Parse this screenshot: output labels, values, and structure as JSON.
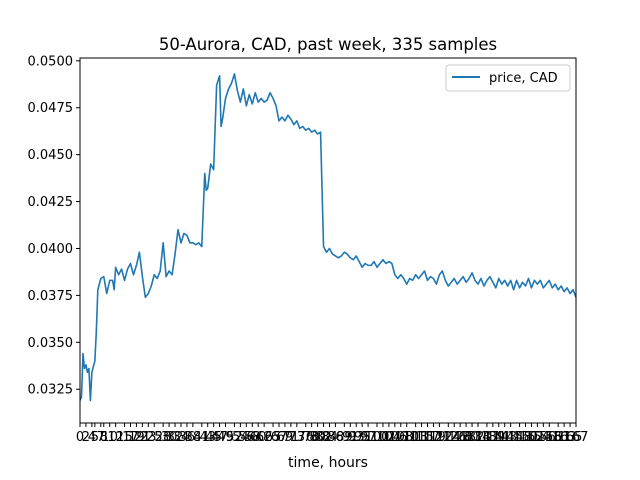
{
  "chart_data": {
    "type": "line",
    "title": "50-Aurora, CAD, past week, 335 samples",
    "xlabel": "time, hours",
    "ylabel": "",
    "xlim": [
      0,
      167
    ],
    "ylim": [
      0.0307,
      0.05015
    ],
    "y_ticks": [
      "0.0325",
      "0.0350",
      "0.0375",
      "0.0400",
      "0.0425",
      "0.0450",
      "0.0475",
      "0.0500"
    ],
    "y_tick_values": [
      0.0325,
      0.035,
      0.0375,
      0.04,
      0.0425,
      0.045,
      0.0475,
      0.05
    ],
    "x_ticks_note": "dense overlapping hour tick labels",
    "x_tick_labels": [
      "0",
      "2",
      "4",
      "5",
      "7",
      "8",
      "10",
      "12",
      "15",
      "17",
      "19",
      "21",
      "23",
      "25",
      "28",
      "30",
      "32",
      "34",
      "36",
      "38",
      "41",
      "43",
      "45",
      "47",
      "49",
      "52",
      "54",
      "56",
      "58",
      "60",
      "62",
      "65",
      "67",
      "69",
      "71",
      "73",
      "76",
      "78",
      "80",
      "82",
      "84",
      "86",
      "89",
      "91",
      "93",
      "95",
      "97",
      "100",
      "102",
      "104",
      "106",
      "108",
      "110",
      "113",
      "115",
      "117",
      "119",
      "121",
      "124",
      "126",
      "128",
      "130",
      "132",
      "134",
      "137",
      "139",
      "141",
      "143",
      "145",
      "148",
      "150",
      "152",
      "154",
      "156",
      "158",
      "161",
      "163",
      "165",
      "167"
    ],
    "legend": {
      "position": "top-right",
      "entries": [
        "price, CAD"
      ]
    },
    "grid": false,
    "series": [
      {
        "name": "price, CAD",
        "color": "#1f77b4",
        "points": [
          [
            0,
            0.0319
          ],
          [
            0.5,
            0.0321
          ],
          [
            1,
            0.0344
          ],
          [
            1.5,
            0.0336
          ],
          [
            2,
            0.0338
          ],
          [
            2.5,
            0.0334
          ],
          [
            3,
            0.0336
          ],
          [
            3.5,
            0.0319
          ],
          [
            4,
            0.0334
          ],
          [
            5,
            0.034
          ],
          [
            5.5,
            0.0356
          ],
          [
            6,
            0.0378
          ],
          [
            7,
            0.0384
          ],
          [
            8,
            0.0385
          ],
          [
            9,
            0.0376
          ],
          [
            10,
            0.0383
          ],
          [
            11,
            0.0383
          ],
          [
            11.5,
            0.0378
          ],
          [
            12,
            0.039
          ],
          [
            13,
            0.0386
          ],
          [
            14,
            0.0389
          ],
          [
            15,
            0.0383
          ],
          [
            16,
            0.0389
          ],
          [
            17,
            0.0392
          ],
          [
            18,
            0.0386
          ],
          [
            19,
            0.0391
          ],
          [
            20,
            0.0398
          ],
          [
            21,
            0.0385
          ],
          [
            22,
            0.0374
          ],
          [
            23,
            0.0376
          ],
          [
            24,
            0.038
          ],
          [
            25,
            0.0386
          ],
          [
            26,
            0.0384
          ],
          [
            27,
            0.0388
          ],
          [
            28,
            0.0403
          ],
          [
            29,
            0.0385
          ],
          [
            30,
            0.0388
          ],
          [
            31,
            0.0386
          ],
          [
            32,
            0.0397
          ],
          [
            33,
            0.041
          ],
          [
            34,
            0.0403
          ],
          [
            35,
            0.0408
          ],
          [
            36,
            0.0407
          ],
          [
            37,
            0.0403
          ],
          [
            38,
            0.0403
          ],
          [
            39,
            0.0402
          ],
          [
            40,
            0.0403
          ],
          [
            41,
            0.0401
          ],
          [
            42,
            0.044
          ],
          [
            42.5,
            0.0431
          ],
          [
            43,
            0.0432
          ],
          [
            44,
            0.0445
          ],
          [
            45,
            0.0442
          ],
          [
            46,
            0.0487
          ],
          [
            47,
            0.0492
          ],
          [
            47.5,
            0.0465
          ],
          [
            48,
            0.0469
          ],
          [
            49,
            0.048
          ],
          [
            50,
            0.0485
          ],
          [
            51,
            0.0488
          ],
          [
            52,
            0.0493
          ],
          [
            53,
            0.0484
          ],
          [
            54,
            0.0478
          ],
          [
            55,
            0.0485
          ],
          [
            56,
            0.0476
          ],
          [
            57,
            0.0482
          ],
          [
            58,
            0.0477
          ],
          [
            59,
            0.0483
          ],
          [
            60,
            0.0478
          ],
          [
            61,
            0.048
          ],
          [
            62,
            0.0478
          ],
          [
            63,
            0.0479
          ],
          [
            64,
            0.0483
          ],
          [
            65,
            0.048
          ],
          [
            66,
            0.0476
          ],
          [
            67,
            0.0468
          ],
          [
            68,
            0.047
          ],
          [
            69,
            0.0468
          ],
          [
            70,
            0.0471
          ],
          [
            71,
            0.0469
          ],
          [
            72,
            0.0466
          ],
          [
            73,
            0.0468
          ],
          [
            74,
            0.0464
          ],
          [
            75,
            0.0465
          ],
          [
            76,
            0.0463
          ],
          [
            77,
            0.0464
          ],
          [
            78,
            0.0462
          ],
          [
            79,
            0.0463
          ],
          [
            80,
            0.0461
          ],
          [
            81,
            0.0462
          ],
          [
            82,
            0.0401
          ],
          [
            83,
            0.0398
          ],
          [
            84,
            0.04
          ],
          [
            85,
            0.0397
          ],
          [
            86,
            0.0396
          ],
          [
            87,
            0.0395
          ],
          [
            88,
            0.0396
          ],
          [
            89,
            0.0398
          ],
          [
            90,
            0.0397
          ],
          [
            91,
            0.0395
          ],
          [
            92,
            0.0394
          ],
          [
            93,
            0.0396
          ],
          [
            94,
            0.0393
          ],
          [
            95,
            0.039
          ],
          [
            96,
            0.0392
          ],
          [
            97,
            0.0391
          ],
          [
            98,
            0.0391
          ],
          [
            99,
            0.0393
          ],
          [
            100,
            0.039
          ],
          [
            101,
            0.0392
          ],
          [
            102,
            0.0394
          ],
          [
            103,
            0.0392
          ],
          [
            104,
            0.0393
          ],
          [
            105,
            0.0392
          ],
          [
            106,
            0.0386
          ],
          [
            107,
            0.0384
          ],
          [
            108,
            0.0386
          ],
          [
            109,
            0.0384
          ],
          [
            110,
            0.0381
          ],
          [
            111,
            0.0384
          ],
          [
            112,
            0.0383
          ],
          [
            113,
            0.0386
          ],
          [
            114,
            0.0384
          ],
          [
            115,
            0.0386
          ],
          [
            116,
            0.0388
          ],
          [
            117,
            0.0383
          ],
          [
            118,
            0.0385
          ],
          [
            119,
            0.0384
          ],
          [
            120,
            0.0381
          ],
          [
            121,
            0.0386
          ],
          [
            122,
            0.0388
          ],
          [
            123,
            0.0383
          ],
          [
            124,
            0.038
          ],
          [
            125,
            0.0382
          ],
          [
            126,
            0.0384
          ],
          [
            127,
            0.0381
          ],
          [
            128,
            0.0383
          ],
          [
            129,
            0.0385
          ],
          [
            130,
            0.0382
          ],
          [
            131,
            0.0384
          ],
          [
            132,
            0.0387
          ],
          [
            133,
            0.0383
          ],
          [
            134,
            0.0381
          ],
          [
            135,
            0.0384
          ],
          [
            136,
            0.038
          ],
          [
            137,
            0.0383
          ],
          [
            138,
            0.0385
          ],
          [
            139,
            0.0382
          ],
          [
            140,
            0.0379
          ],
          [
            141,
            0.0384
          ],
          [
            142,
            0.0381
          ],
          [
            143,
            0.0383
          ],
          [
            144,
            0.038
          ],
          [
            145,
            0.0383
          ],
          [
            146,
            0.0378
          ],
          [
            147,
            0.0383
          ],
          [
            148,
            0.0379
          ],
          [
            149,
            0.0382
          ],
          [
            150,
            0.038
          ],
          [
            151,
            0.0384
          ],
          [
            152,
            0.0379
          ],
          [
            153,
            0.0383
          ],
          [
            154,
            0.0381
          ],
          [
            155,
            0.0383
          ],
          [
            156,
            0.0379
          ],
          [
            157,
            0.0381
          ],
          [
            158,
            0.0383
          ],
          [
            159,
            0.0379
          ],
          [
            160,
            0.0381
          ],
          [
            161,
            0.0378
          ],
          [
            162,
            0.038
          ],
          [
            163,
            0.0377
          ],
          [
            164,
            0.0379
          ],
          [
            165,
            0.0376
          ],
          [
            166,
            0.0378
          ],
          [
            167,
            0.0374
          ]
        ]
      }
    ]
  }
}
